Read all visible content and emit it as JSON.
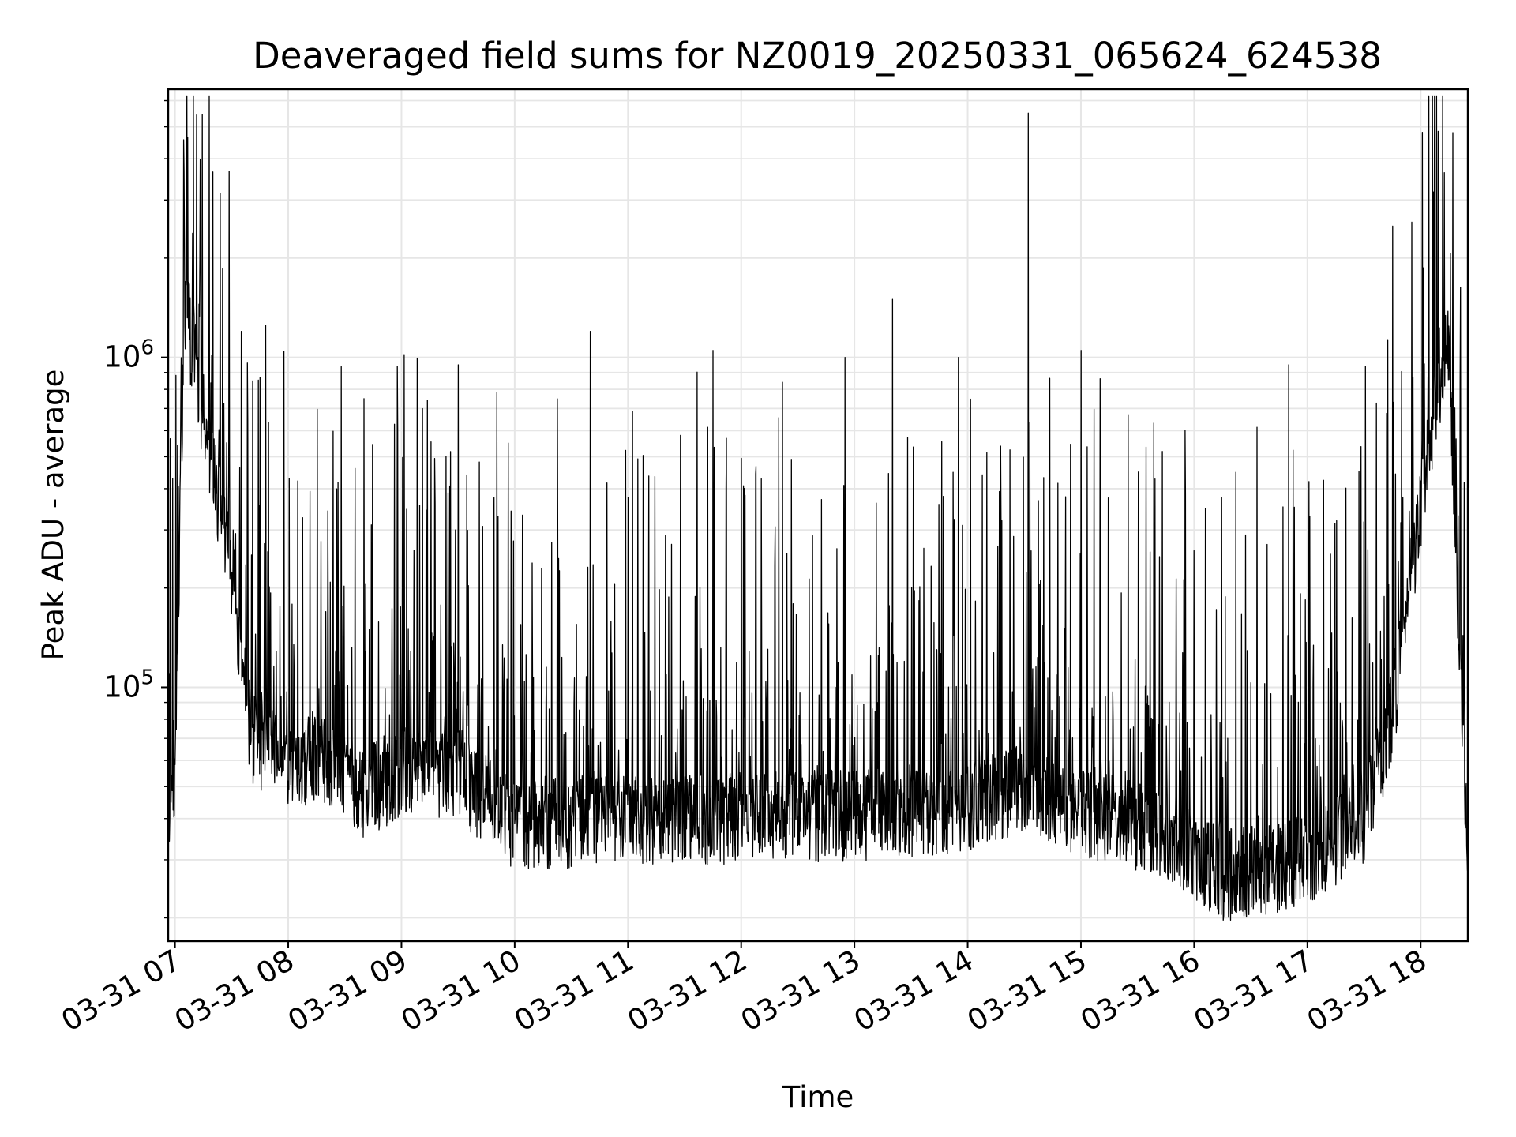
{
  "chart_data": {
    "type": "line",
    "title": "Deaveraged field sums for NZ0019_20250331_065624_624538",
    "xlabel": "Time",
    "ylabel": "Peak ADU - average",
    "yscale": "log",
    "ylim": [
      17000,
      6500000
    ],
    "xlim": [
      "2025-03-31 06:56:24",
      "2025-03-31 18:25:00"
    ],
    "grid": true,
    "line_color": "#000000",
    "x_ticks": [
      {
        "x": "2025-03-31 07:00",
        "label": "03-31 07"
      },
      {
        "x": "2025-03-31 08:00",
        "label": "03-31 08"
      },
      {
        "x": "2025-03-31 09:00",
        "label": "03-31 09"
      },
      {
        "x": "2025-03-31 10:00",
        "label": "03-31 10"
      },
      {
        "x": "2025-03-31 11:00",
        "label": "03-31 11"
      },
      {
        "x": "2025-03-31 12:00",
        "label": "03-31 12"
      },
      {
        "x": "2025-03-31 13:00",
        "label": "03-31 13"
      },
      {
        "x": "2025-03-31 14:00",
        "label": "03-31 14"
      },
      {
        "x": "2025-03-31 15:00",
        "label": "03-31 15"
      },
      {
        "x": "2025-03-31 16:00",
        "label": "03-31 16"
      },
      {
        "x": "2025-03-31 17:00",
        "label": "03-31 17"
      },
      {
        "x": "2025-03-31 18:00",
        "label": "03-31 18"
      }
    ],
    "y_ticks": [
      {
        "value": 100000,
        "base": "10",
        "exponent": "5"
      },
      {
        "value": 1000000,
        "base": "10",
        "exponent": "6"
      }
    ],
    "baseline": [
      {
        "x": "2025-03-31 06:56:24",
        "y": 35000
      },
      {
        "x": "2025-03-31 07:00",
        "y": 50000
      },
      {
        "x": "2025-03-31 07:05",
        "y": 1500000
      },
      {
        "x": "2025-03-31 07:15",
        "y": 650000
      },
      {
        "x": "2025-03-31 07:30",
        "y": 220000
      },
      {
        "x": "2025-03-31 07:40",
        "y": 70000
      },
      {
        "x": "2025-03-31 08:00",
        "y": 60000
      },
      {
        "x": "2025-03-31 08:20",
        "y": 60000
      },
      {
        "x": "2025-03-31 08:40",
        "y": 48000
      },
      {
        "x": "2025-03-31 09:00",
        "y": 55000
      },
      {
        "x": "2025-03-31 09:30",
        "y": 55000
      },
      {
        "x": "2025-03-31 09:45",
        "y": 45000
      },
      {
        "x": "2025-03-31 10:00",
        "y": 38000
      },
      {
        "x": "2025-03-31 11:00",
        "y": 40000
      },
      {
        "x": "2025-03-31 12:00",
        "y": 40000
      },
      {
        "x": "2025-03-31 13:00",
        "y": 41000
      },
      {
        "x": "2025-03-31 14:00",
        "y": 43000
      },
      {
        "x": "2025-03-31 14:30",
        "y": 50000
      },
      {
        "x": "2025-03-31 15:00",
        "y": 42000
      },
      {
        "x": "2025-03-31 15:45",
        "y": 36000
      },
      {
        "x": "2025-03-31 16:15",
        "y": 27000
      },
      {
        "x": "2025-03-31 16:45",
        "y": 28000
      },
      {
        "x": "2025-03-31 17:00",
        "y": 30000
      },
      {
        "x": "2025-03-31 17:30",
        "y": 40000
      },
      {
        "x": "2025-03-31 17:45",
        "y": 80000
      },
      {
        "x": "2025-03-31 18:00",
        "y": 350000
      },
      {
        "x": "2025-03-31 18:10",
        "y": 800000
      },
      {
        "x": "2025-03-31 18:15",
        "y": 1200000
      },
      {
        "x": "2025-03-31 18:20",
        "y": 150000
      },
      {
        "x": "2025-03-31 18:25",
        "y": 28000
      }
    ],
    "peaks": [
      {
        "x": "2025-03-31 07:05",
        "y": 2300000
      },
      {
        "x": "2025-03-31 07:35",
        "y": 1200000
      },
      {
        "x": "2025-03-31 07:48",
        "y": 1250000
      },
      {
        "x": "2025-03-31 08:40",
        "y": 750000
      },
      {
        "x": "2025-03-31 08:58",
        "y": 600000
      },
      {
        "x": "2025-03-31 09:30",
        "y": 950000
      },
      {
        "x": "2025-03-31 10:40",
        "y": 1200000
      },
      {
        "x": "2025-03-31 11:45",
        "y": 1050000
      },
      {
        "x": "2025-03-31 12:55",
        "y": 1000000
      },
      {
        "x": "2025-03-31 13:20",
        "y": 1500000
      },
      {
        "x": "2025-03-31 13:55",
        "y": 1000000
      },
      {
        "x": "2025-03-31 14:32",
        "y": 5500000
      },
      {
        "x": "2025-03-31 15:00",
        "y": 1050000
      },
      {
        "x": "2025-03-31 15:55",
        "y": 600000
      },
      {
        "x": "2025-03-31 16:50",
        "y": 950000
      },
      {
        "x": "2025-03-31 17:45",
        "y": 2500000
      },
      {
        "x": "2025-03-31 18:17",
        "y": 4800000
      }
    ]
  }
}
